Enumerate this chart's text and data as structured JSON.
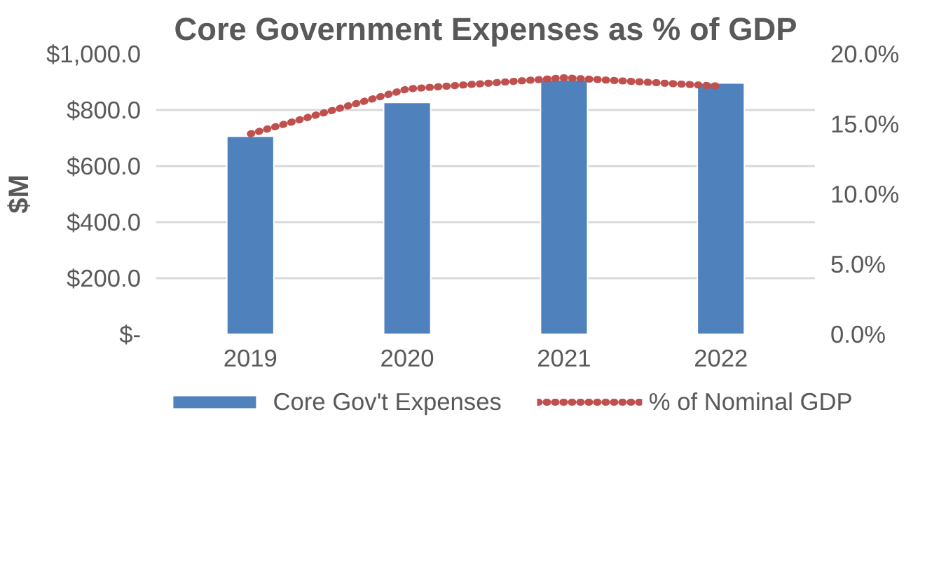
{
  "chart_data": {
    "type": "bar",
    "title": "Core Government Expenses as % of GDP",
    "ylabel": "$M",
    "categories": [
      "2019",
      "2020",
      "2021",
      "2022"
    ],
    "series": [
      {
        "name": "Core Gov't Expenses",
        "color": "#4f81bd",
        "values": [
          706,
          827,
          908,
          896
        ]
      },
      {
        "name": "% of Nominal GDP",
        "type": "line",
        "axis": "y2",
        "color": "#c0504d",
        "line_style": "dotted",
        "marker": "none",
        "values": [
          14.3,
          17.5,
          18.3,
          17.7
        ]
      }
    ],
    "ylim": [
      0,
      1000
    ],
    "yticks": [
      {
        "value": 0,
        "label": "$-"
      },
      {
        "value": 200,
        "label": "$200.0"
      },
      {
        "value": 400,
        "label": "$400.0"
      },
      {
        "value": 600,
        "label": "$600.0"
      },
      {
        "value": 800,
        "label": "$800.0"
      },
      {
        "value": 1000,
        "label": "$1,000.0"
      }
    ],
    "y2lim": [
      0,
      20
    ],
    "y2ticks": [
      {
        "value": 0,
        "label": "0.0%"
      },
      {
        "value": 5,
        "label": "5.0%"
      },
      {
        "value": 10,
        "label": "10.0%"
      },
      {
        "value": 15,
        "label": "15.0%"
      },
      {
        "value": 20,
        "label": "20.0%"
      }
    ],
    "grid": "y",
    "legend": "bottom"
  }
}
